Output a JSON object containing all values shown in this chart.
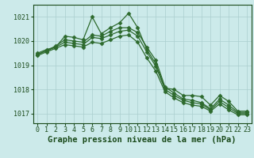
{
  "title": "Graphe pression niveau de la mer (hPa)",
  "xlabel_hours": [
    0,
    1,
    2,
    3,
    4,
    5,
    6,
    7,
    8,
    9,
    10,
    11,
    12,
    13,
    14,
    15,
    16,
    17,
    18,
    19,
    20,
    21,
    22,
    23
  ],
  "ylim": [
    1016.6,
    1021.5
  ],
  "yticks": [
    1017,
    1018,
    1019,
    1020,
    1021
  ],
  "background_color": "#cceaea",
  "grid_color": "#aacece",
  "line_color": "#2d6a2d",
  "lines": [
    [
      1019.5,
      1019.65,
      1019.75,
      1020.2,
      1020.15,
      1020.05,
      1021.0,
      1020.3,
      1020.55,
      1020.75,
      1021.15,
      1020.55,
      1019.65,
      1019.05,
      1018.05,
      1018.0,
      1017.75,
      1017.75,
      1017.7,
      1017.35,
      1017.75,
      1017.5,
      1017.1,
      1017.1
    ],
    [
      1019.45,
      1019.6,
      1019.8,
      1020.05,
      1020.0,
      1019.95,
      1020.25,
      1020.2,
      1020.4,
      1020.55,
      1020.55,
      1020.35,
      1019.75,
      1019.2,
      1018.1,
      1017.85,
      1017.6,
      1017.55,
      1017.45,
      1017.2,
      1017.6,
      1017.35,
      1017.05,
      1017.05
    ],
    [
      1019.45,
      1019.6,
      1019.75,
      1019.95,
      1019.9,
      1019.85,
      1020.15,
      1020.1,
      1020.25,
      1020.4,
      1020.45,
      1020.2,
      1019.55,
      1018.95,
      1018.0,
      1017.75,
      1017.55,
      1017.45,
      1017.4,
      1017.15,
      1017.5,
      1017.25,
      1017.0,
      1017.0
    ],
    [
      1019.4,
      1019.55,
      1019.7,
      1019.85,
      1019.8,
      1019.75,
      1019.95,
      1019.9,
      1020.05,
      1020.2,
      1020.25,
      1019.95,
      1019.3,
      1018.75,
      1017.9,
      1017.65,
      1017.45,
      1017.35,
      1017.3,
      1017.1,
      1017.4,
      1017.15,
      1016.95,
      1016.95
    ]
  ],
  "marker": "D",
  "marker_size": 2.5,
  "line_width": 0.9,
  "title_fontsize": 7.5,
  "tick_fontsize": 6.0,
  "title_color": "#1a4a1a",
  "tick_color": "#1a4a1a",
  "title_fontfamily": "monospace",
  "figsize": [
    3.2,
    2.0
  ],
  "dpi": 100
}
